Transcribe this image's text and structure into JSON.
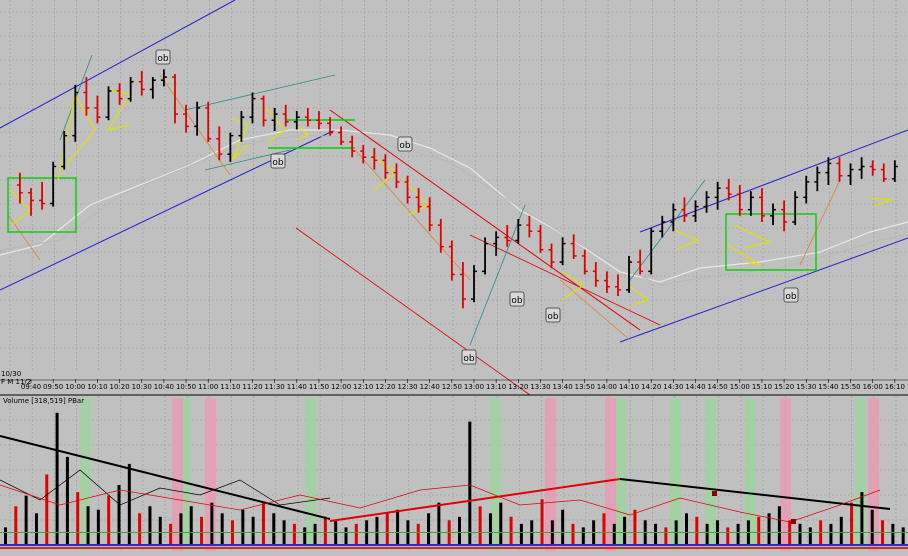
{
  "colors": {
    "background": "#c0c0c0",
    "grid": "#9a9a9a",
    "up_bar": "#000000",
    "down_bar": "#e00000",
    "channel": "#2020d0",
    "moving_average": "#e8e8e8",
    "range_box": "#00d000",
    "pattern": "#e0e000",
    "trend_red": "#e00000",
    "trend_teal": "#2a8a8a",
    "trend_orange": "#e08030",
    "vol_green_band": "#9fd49f",
    "vol_pink_band": "#e99bb4"
  },
  "price_panel": {
    "date_label": "10/30",
    "date_label2": "F  M  11/2"
  },
  "ob_markers": [
    "ob",
    "ob",
    "ob",
    "ob",
    "ob",
    "ob",
    "ob"
  ],
  "chart_data": [
    {
      "type": "bar",
      "title": "",
      "x_ticks": [
        "09:40",
        "09:50",
        "10:00",
        "10:10",
        "10:20",
        "10:30",
        "10:40",
        "10:50",
        "11:00",
        "11:10",
        "11:20",
        "11:30",
        "11:40",
        "11:50",
        "12:00",
        "12:10",
        "12:20",
        "12:30",
        "12:40",
        "12:50",
        "13:00",
        "13:10",
        "13:20",
        "13:30",
        "13:40",
        "13:50",
        "14:00",
        "14:10",
        "14:20",
        "14:30",
        "14:40",
        "14:50",
        "15:00",
        "15:10",
        "15:20",
        "15:30",
        "15:40",
        "15:50",
        "16:00",
        "16:10"
      ],
      "bars": [
        {
          "x": "09:35",
          "o": 60,
          "h": 68,
          "l": 48,
          "c": 55
        },
        {
          "x": "09:40",
          "o": 55,
          "h": 58,
          "l": 40,
          "c": 50
        },
        {
          "x": "09:45",
          "o": 50,
          "h": 62,
          "l": 44,
          "c": 48
        },
        {
          "x": "09:50",
          "o": 48,
          "h": 75,
          "l": 46,
          "c": 72
        },
        {
          "x": "09:55",
          "o": 72,
          "h": 95,
          "l": 70,
          "c": 92
        },
        {
          "x": "10:00",
          "o": 92,
          "h": 125,
          "l": 88,
          "c": 120
        },
        {
          "x": "10:05",
          "o": 120,
          "h": 130,
          "l": 105,
          "c": 110
        },
        {
          "x": "10:10",
          "o": 110,
          "h": 118,
          "l": 100,
          "c": 104
        },
        {
          "x": "10:15",
          "o": 104,
          "h": 124,
          "l": 102,
          "c": 121
        },
        {
          "x": "10:20",
          "o": 121,
          "h": 126,
          "l": 112,
          "c": 116
        },
        {
          "x": "10:25",
          "o": 116,
          "h": 130,
          "l": 114,
          "c": 127
        },
        {
          "x": "10:30",
          "o": 127,
          "h": 134,
          "l": 118,
          "c": 122
        },
        {
          "x": "10:35",
          "o": 122,
          "h": 130,
          "l": 116,
          "c": 128
        },
        {
          "x": "10:40",
          "o": 128,
          "h": 135,
          "l": 124,
          "c": 130
        },
        {
          "x": "10:45",
          "o": 130,
          "h": 132,
          "l": 100,
          "c": 106
        },
        {
          "x": "10:50",
          "o": 106,
          "h": 112,
          "l": 94,
          "c": 98
        },
        {
          "x": "10:55",
          "o": 98,
          "h": 114,
          "l": 92,
          "c": 110
        },
        {
          "x": "11:00",
          "o": 110,
          "h": 114,
          "l": 88,
          "c": 90
        },
        {
          "x": "11:05",
          "o": 90,
          "h": 98,
          "l": 76,
          "c": 80
        },
        {
          "x": "11:10",
          "o": 80,
          "h": 94,
          "l": 75,
          "c": 92
        },
        {
          "x": "11:15",
          "o": 92,
          "h": 108,
          "l": 88,
          "c": 104
        },
        {
          "x": "11:20",
          "o": 104,
          "h": 120,
          "l": 100,
          "c": 116
        },
        {
          "x": "11:25",
          "o": 116,
          "h": 118,
          "l": 98,
          "c": 102
        },
        {
          "x": "11:30",
          "o": 102,
          "h": 110,
          "l": 95,
          "c": 106
        },
        {
          "x": "11:35",
          "o": 106,
          "h": 112,
          "l": 98,
          "c": 101
        },
        {
          "x": "11:40",
          "o": 101,
          "h": 108,
          "l": 96,
          "c": 104
        },
        {
          "x": "11:45",
          "o": 104,
          "h": 110,
          "l": 98,
          "c": 102
        },
        {
          "x": "11:50",
          "o": 102,
          "h": 108,
          "l": 96,
          "c": 100
        },
        {
          "x": "11:55",
          "o": 100,
          "h": 104,
          "l": 92,
          "c": 94
        },
        {
          "x": "12:00",
          "o": 94,
          "h": 98,
          "l": 86,
          "c": 88
        },
        {
          "x": "12:05",
          "o": 88,
          "h": 92,
          "l": 78,
          "c": 82
        },
        {
          "x": "12:10",
          "o": 82,
          "h": 86,
          "l": 74,
          "c": 78
        },
        {
          "x": "12:15",
          "o": 78,
          "h": 84,
          "l": 70,
          "c": 76
        },
        {
          "x": "12:20",
          "o": 76,
          "h": 80,
          "l": 64,
          "c": 68
        },
        {
          "x": "12:25",
          "o": 68,
          "h": 74,
          "l": 58,
          "c": 62
        },
        {
          "x": "12:30",
          "o": 62,
          "h": 66,
          "l": 48,
          "c": 52
        },
        {
          "x": "12:35",
          "o": 52,
          "h": 58,
          "l": 42,
          "c": 46
        },
        {
          "x": "12:40",
          "o": 46,
          "h": 52,
          "l": 30,
          "c": 34
        },
        {
          "x": "12:45",
          "o": 34,
          "h": 38,
          "l": 16,
          "c": 20
        },
        {
          "x": "12:50",
          "o": 20,
          "h": 24,
          "l": -2,
          "c": 2
        },
        {
          "x": "12:55",
          "o": 2,
          "h": 10,
          "l": -20,
          "c": -14
        },
        {
          "x": "13:00",
          "o": -14,
          "h": 8,
          "l": -16,
          "c": 4
        },
        {
          "x": "13:05",
          "o": 4,
          "h": 26,
          "l": 2,
          "c": 22
        },
        {
          "x": "13:10",
          "o": 22,
          "h": 30,
          "l": 14,
          "c": 26
        },
        {
          "x": "13:15",
          "o": 26,
          "h": 34,
          "l": 20,
          "c": 24
        },
        {
          "x": "13:20",
          "o": 24,
          "h": 38,
          "l": 22,
          "c": 34
        },
        {
          "x": "13:25",
          "o": 34,
          "h": 40,
          "l": 26,
          "c": 30
        },
        {
          "x": "13:30",
          "o": 30,
          "h": 34,
          "l": 16,
          "c": 18
        },
        {
          "x": "13:35",
          "o": 18,
          "h": 22,
          "l": 6,
          "c": 10
        },
        {
          "x": "13:40",
          "o": 10,
          "h": 26,
          "l": 8,
          "c": 22
        },
        {
          "x": "13:45",
          "o": 22,
          "h": 28,
          "l": 12,
          "c": 14
        },
        {
          "x": "13:50",
          "o": 14,
          "h": 18,
          "l": 2,
          "c": 4
        },
        {
          "x": "13:55",
          "o": 4,
          "h": 10,
          "l": -6,
          "c": -2
        },
        {
          "x": "14:00",
          "o": -2,
          "h": 4,
          "l": -10,
          "c": -6
        },
        {
          "x": "14:05",
          "o": -6,
          "h": 2,
          "l": -12,
          "c": -8
        },
        {
          "x": "14:10",
          "o": -8,
          "h": 14,
          "l": -10,
          "c": 10
        },
        {
          "x": "14:15",
          "o": 10,
          "h": 18,
          "l": 2,
          "c": 4
        },
        {
          "x": "14:20",
          "o": 4,
          "h": 32,
          "l": 2,
          "c": 30
        },
        {
          "x": "14:25",
          "o": 30,
          "h": 40,
          "l": 26,
          "c": 36
        },
        {
          "x": "14:30",
          "o": 36,
          "h": 48,
          "l": 30,
          "c": 44
        },
        {
          "x": "14:35",
          "o": 44,
          "h": 52,
          "l": 36,
          "c": 40
        },
        {
          "x": "14:40",
          "o": 40,
          "h": 50,
          "l": 36,
          "c": 46
        },
        {
          "x": "14:45",
          "o": 46,
          "h": 56,
          "l": 42,
          "c": 52
        },
        {
          "x": "14:50",
          "o": 52,
          "h": 62,
          "l": 44,
          "c": 58
        },
        {
          "x": "14:55",
          "o": 58,
          "h": 64,
          "l": 50,
          "c": 54
        },
        {
          "x": "15:00",
          "o": 54,
          "h": 60,
          "l": 40,
          "c": 44
        },
        {
          "x": "15:05",
          "o": 44,
          "h": 56,
          "l": 40,
          "c": 52
        },
        {
          "x": "15:10",
          "o": 52,
          "h": 58,
          "l": 36,
          "c": 40
        },
        {
          "x": "15:15",
          "o": 40,
          "h": 48,
          "l": 34,
          "c": 44
        },
        {
          "x": "15:20",
          "o": 44,
          "h": 50,
          "l": 30,
          "c": 36
        },
        {
          "x": "15:25",
          "o": 36,
          "h": 56,
          "l": 34,
          "c": 52
        },
        {
          "x": "15:30",
          "o": 52,
          "h": 66,
          "l": 48,
          "c": 62
        },
        {
          "x": "15:35",
          "o": 62,
          "h": 72,
          "l": 56,
          "c": 68
        },
        {
          "x": "15:40",
          "o": 68,
          "h": 78,
          "l": 60,
          "c": 74
        },
        {
          "x": "15:45",
          "o": 74,
          "h": 78,
          "l": 62,
          "c": 66
        },
        {
          "x": "15:50",
          "o": 66,
          "h": 74,
          "l": 60,
          "c": 70
        },
        {
          "x": "15:55",
          "o": 70,
          "h": 78,
          "l": 64,
          "c": 72
        },
        {
          "x": "16:00",
          "o": 72,
          "h": 76,
          "l": 66,
          "c": 70
        },
        {
          "x": "16:05",
          "o": 70,
          "h": 74,
          "l": 62,
          "c": 64
        },
        {
          "x": "16:10",
          "o": 64,
          "h": 76,
          "l": 62,
          "c": 72
        }
      ],
      "ylim": [
        -60,
        180
      ],
      "grid": true
    },
    {
      "type": "bar",
      "title": "Volume [318,519] PBar",
      "values": [
        10,
        22,
        28,
        18,
        40,
        75,
        50,
        30,
        22,
        20,
        28,
        34,
        46,
        18,
        22,
        16,
        12,
        18,
        22,
        16,
        24,
        18,
        14,
        20,
        16,
        24,
        18,
        14,
        12,
        10,
        12,
        16,
        14,
        10,
        12,
        14,
        16,
        18,
        20,
        14,
        12,
        18,
        24,
        14,
        16,
        70,
        22,
        18,
        24,
        16,
        12,
        14,
        26,
        14,
        20,
        12,
        10,
        14,
        18,
        12,
        16,
        20,
        14,
        12,
        10,
        14,
        18,
        16,
        12,
        14,
        10,
        12,
        14,
        16,
        18,
        22,
        14,
        12,
        10,
        14,
        12,
        16,
        24,
        30,
        20,
        14,
        12,
        10
      ],
      "ylim": [
        0,
        80
      ],
      "green_bands": [
        80,
        180,
        305,
        490,
        615,
        670,
        705,
        745,
        855
      ],
      "pink_bands": [
        172,
        205,
        545,
        605,
        780,
        868
      ]
    }
  ]
}
